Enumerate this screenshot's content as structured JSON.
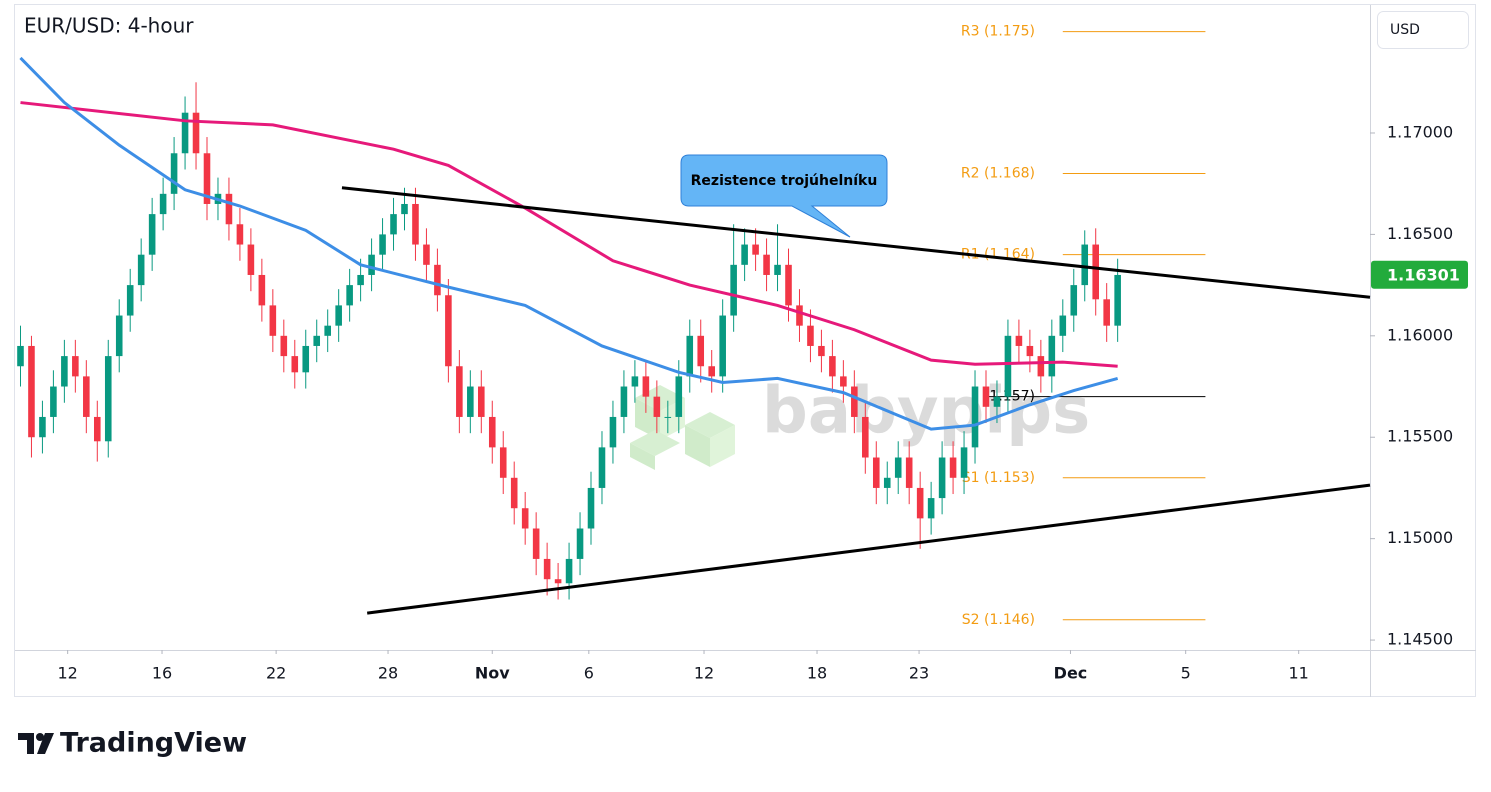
{
  "chart_data": {
    "type": "candlestick",
    "title": "EUR/USD: 4-hour",
    "currency": "USD",
    "watermark": "babypips",
    "brand": "TradingView",
    "up_color": "#089981",
    "down_color": "#f23645",
    "xlim": [
      -0.5,
      123
    ],
    "xticks": [
      {
        "value": 4.3,
        "label": "12"
      },
      {
        "value": 12.9,
        "label": "16"
      },
      {
        "value": 23.3,
        "label": "22"
      },
      {
        "value": 33.5,
        "label": "28"
      },
      {
        "value": 43,
        "label": "Nov"
      },
      {
        "value": 51.8,
        "label": "6"
      },
      {
        "value": 62.3,
        "label": "12"
      },
      {
        "value": 72.6,
        "label": "18"
      },
      {
        "value": 81.9,
        "label": "23"
      },
      {
        "value": 95.7,
        "label": "Dec"
      },
      {
        "value": 106.2,
        "label": "5"
      },
      {
        "value": 116.5,
        "label": "11"
      }
    ],
    "ylim": [
      1.14451,
      1.17631
    ],
    "yticks": [
      {
        "value": 1.145,
        "label": "1.14500"
      },
      {
        "value": 1.15,
        "label": "1.15000"
      },
      {
        "value": 1.155,
        "label": "1.15500"
      },
      {
        "value": 1.16,
        "label": "1.16000"
      },
      {
        "value": 1.165,
        "label": "1.16500"
      },
      {
        "value": 1.17,
        "label": "1.17000"
      }
    ],
    "x": [
      0,
      1,
      2,
      3,
      4,
      5,
      6,
      7,
      8,
      9,
      10,
      11,
      12,
      13,
      14,
      15,
      16,
      17,
      18,
      19,
      20,
      21,
      22,
      23,
      24,
      25,
      26,
      27,
      28,
      29,
      30,
      31,
      32,
      33,
      34,
      35,
      36,
      37,
      38,
      39,
      40,
      41,
      42,
      43,
      44,
      45,
      46,
      47,
      48,
      49,
      50,
      51,
      52,
      53,
      54,
      55,
      56,
      57,
      58,
      59,
      60,
      61,
      62,
      63,
      64,
      65,
      66,
      67,
      68,
      69,
      70,
      71,
      72,
      73,
      74,
      75,
      76,
      77,
      78,
      79,
      80,
      81,
      82,
      83,
      84,
      85,
      86,
      87,
      88,
      89,
      90,
      91,
      92,
      93,
      94,
      95,
      96,
      97,
      98,
      99,
      100
    ],
    "ohlc": [
      [
        1.1585,
        1.1605,
        1.1575,
        1.1595
      ],
      [
        1.1595,
        1.16,
        1.154,
        1.155
      ],
      [
        1.155,
        1.1568,
        1.1542,
        1.156
      ],
      [
        1.156,
        1.1583,
        1.1552,
        1.1575
      ],
      [
        1.1575,
        1.1598,
        1.1567,
        1.159
      ],
      [
        1.159,
        1.1598,
        1.1572,
        1.158
      ],
      [
        1.158,
        1.1588,
        1.1552,
        1.156
      ],
      [
        1.156,
        1.1568,
        1.1538,
        1.1548
      ],
      [
        1.1548,
        1.1598,
        1.154,
        1.159
      ],
      [
        1.159,
        1.1618,
        1.1582,
        1.161
      ],
      [
        1.161,
        1.1633,
        1.1602,
        1.1625
      ],
      [
        1.1625,
        1.1648,
        1.1617,
        1.164
      ],
      [
        1.164,
        1.1668,
        1.1632,
        1.166
      ],
      [
        1.166,
        1.1678,
        1.1652,
        1.167
      ],
      [
        1.167,
        1.1698,
        1.1662,
        1.169
      ],
      [
        1.169,
        1.1718,
        1.1682,
        1.171
      ],
      [
        1.171,
        1.1725,
        1.1682,
        1.169
      ],
      [
        1.169,
        1.1698,
        1.1657,
        1.1665
      ],
      [
        1.1665,
        1.1678,
        1.1657,
        1.167
      ],
      [
        1.167,
        1.1678,
        1.1647,
        1.1655
      ],
      [
        1.1655,
        1.1663,
        1.1637,
        1.1645
      ],
      [
        1.1645,
        1.1653,
        1.1622,
        1.163
      ],
      [
        1.163,
        1.1638,
        1.1607,
        1.1615
      ],
      [
        1.1615,
        1.1623,
        1.1592,
        1.16
      ],
      [
        1.16,
        1.1608,
        1.1582,
        1.159
      ],
      [
        1.159,
        1.1598,
        1.1574,
        1.1582
      ],
      [
        1.1582,
        1.1603,
        1.1574,
        1.1595
      ],
      [
        1.1595,
        1.1608,
        1.1587,
        1.16
      ],
      [
        1.16,
        1.1613,
        1.1592,
        1.1605
      ],
      [
        1.1605,
        1.1623,
        1.1597,
        1.1615
      ],
      [
        1.1615,
        1.1633,
        1.1607,
        1.1625
      ],
      [
        1.1625,
        1.1638,
        1.1617,
        1.163
      ],
      [
        1.163,
        1.1648,
        1.1622,
        1.164
      ],
      [
        1.164,
        1.1658,
        1.1632,
        1.165
      ],
      [
        1.165,
        1.1668,
        1.1642,
        1.166
      ],
      [
        1.166,
        1.1673,
        1.1652,
        1.1665
      ],
      [
        1.1665,
        1.1673,
        1.1637,
        1.1645
      ],
      [
        1.1645,
        1.1653,
        1.1627,
        1.1635
      ],
      [
        1.1635,
        1.1643,
        1.1612,
        1.162
      ],
      [
        1.162,
        1.1628,
        1.1577,
        1.1585
      ],
      [
        1.1585,
        1.1593,
        1.1552,
        1.156
      ],
      [
        1.156,
        1.1583,
        1.1552,
        1.1575
      ],
      [
        1.1575,
        1.1583,
        1.1552,
        1.156
      ],
      [
        1.156,
        1.1568,
        1.1537,
        1.1545
      ],
      [
        1.1545,
        1.1553,
        1.1522,
        1.153
      ],
      [
        1.153,
        1.1538,
        1.1507,
        1.1515
      ],
      [
        1.1515,
        1.1523,
        1.1497,
        1.1505
      ],
      [
        1.1505,
        1.1513,
        1.1482,
        1.149
      ],
      [
        1.149,
        1.1498,
        1.1472,
        1.148
      ],
      [
        1.148,
        1.1488,
        1.147,
        1.1478
      ],
      [
        1.1478,
        1.1498,
        1.147,
        1.149
      ],
      [
        1.149,
        1.1513,
        1.1482,
        1.1505
      ],
      [
        1.1505,
        1.1533,
        1.1497,
        1.1525
      ],
      [
        1.1525,
        1.1553,
        1.1517,
        1.1545
      ],
      [
        1.1545,
        1.1568,
        1.1537,
        1.156
      ],
      [
        1.156,
        1.1583,
        1.1552,
        1.1575
      ],
      [
        1.1575,
        1.1588,
        1.1567,
        1.158
      ],
      [
        1.158,
        1.1588,
        1.1562,
        1.157
      ],
      [
        1.157,
        1.1578,
        1.1552,
        1.156
      ],
      [
        1.156,
        1.1568,
        1.1552,
        1.156
      ],
      [
        1.156,
        1.1588,
        1.1552,
        1.158
      ],
      [
        1.158,
        1.1608,
        1.1572,
        1.16
      ],
      [
        1.16,
        1.1608,
        1.1577,
        1.1585
      ],
      [
        1.1585,
        1.1593,
        1.1572,
        1.158
      ],
      [
        1.158,
        1.1618,
        1.1572,
        1.161
      ],
      [
        1.161,
        1.1655,
        1.1602,
        1.1635
      ],
      [
        1.1635,
        1.1653,
        1.1627,
        1.1645
      ],
      [
        1.1645,
        1.1653,
        1.1632,
        1.164
      ],
      [
        1.164,
        1.1648,
        1.1622,
        1.163
      ],
      [
        1.163,
        1.1655,
        1.1622,
        1.1635
      ],
      [
        1.1635,
        1.1643,
        1.1607,
        1.1615
      ],
      [
        1.1615,
        1.1623,
        1.1597,
        1.1605
      ],
      [
        1.1605,
        1.1613,
        1.1587,
        1.1595
      ],
      [
        1.1595,
        1.1603,
        1.1582,
        1.159
      ],
      [
        1.159,
        1.1598,
        1.1572,
        1.158
      ],
      [
        1.158,
        1.1588,
        1.1567,
        1.1575
      ],
      [
        1.1575,
        1.1583,
        1.1552,
        1.156
      ],
      [
        1.156,
        1.1568,
        1.1532,
        1.154
      ],
      [
        1.154,
        1.1548,
        1.1517,
        1.1525
      ],
      [
        1.1525,
        1.1538,
        1.1517,
        1.153
      ],
      [
        1.153,
        1.1548,
        1.1522,
        1.154
      ],
      [
        1.154,
        1.1548,
        1.1517,
        1.1525
      ],
      [
        1.1525,
        1.1533,
        1.1495,
        1.151
      ],
      [
        1.151,
        1.1528,
        1.1502,
        1.152
      ],
      [
        1.152,
        1.1548,
        1.1512,
        1.154
      ],
      [
        1.154,
        1.1548,
        1.1522,
        1.153
      ],
      [
        1.153,
        1.1553,
        1.1522,
        1.1545
      ],
      [
        1.1545,
        1.1583,
        1.1537,
        1.1575
      ],
      [
        1.1575,
        1.1583,
        1.1557,
        1.1565
      ],
      [
        1.1565,
        1.1578,
        1.1557,
        1.157
      ],
      [
        1.157,
        1.1608,
        1.1562,
        1.16
      ],
      [
        1.16,
        1.1608,
        1.1587,
        1.1595
      ],
      [
        1.1595,
        1.1603,
        1.1582,
        1.159
      ],
      [
        1.159,
        1.1598,
        1.1572,
        1.158
      ],
      [
        1.158,
        1.1608,
        1.1572,
        1.16
      ],
      [
        1.16,
        1.1618,
        1.1592,
        1.161
      ],
      [
        1.161,
        1.1633,
        1.1602,
        1.1625
      ],
      [
        1.1625,
        1.1652,
        1.1617,
        1.1645
      ],
      [
        1.1645,
        1.1653,
        1.161,
        1.1618
      ],
      [
        1.1618,
        1.1626,
        1.1597,
        1.1605
      ],
      [
        1.1605,
        1.1638,
        1.1597,
        1.163
      ]
    ],
    "moving_averages": [
      {
        "color": "#e6197a",
        "x": [
          0,
          15,
          23,
          34,
          39,
          46,
          54,
          61,
          69,
          76,
          83,
          87,
          95,
          100
        ],
        "values": [
          1.1715,
          1.1706,
          1.1704,
          1.1692,
          1.1684,
          1.1663,
          1.1637,
          1.1625,
          1.1615,
          1.1603,
          1.1588,
          1.1586,
          1.1587,
          1.1585
        ]
      },
      {
        "color": "#3d8ee6",
        "x": [
          0,
          4,
          9,
          15,
          20,
          26,
          31,
          39,
          46,
          53,
          60,
          64,
          69,
          75,
          83,
          87,
          92,
          96,
          100
        ],
        "values": [
          1.1737,
          1.1715,
          1.1694,
          1.1672,
          1.1664,
          1.1652,
          1.1635,
          1.1624,
          1.1615,
          1.1595,
          1.1582,
          1.1577,
          1.1579,
          1.1572,
          1.1554,
          1.1556,
          1.1566,
          1.1573,
          1.1579
        ]
      }
    ],
    "trendlines": [
      {
        "color": "#000000",
        "x": [
          29.3,
          123
        ],
        "values": [
          1.1673,
          1.1619
        ]
      },
      {
        "color": "#000000",
        "x": [
          31.6,
          123
        ],
        "values": [
          1.14633,
          1.15264
        ]
      }
    ],
    "pivot_color": "#f39c12",
    "pivots": [
      {
        "label": "R3 (1.175)",
        "value": 1.175,
        "x": [
          95,
          108
        ],
        "color": "#f39c12"
      },
      {
        "label": "R2 (1.168)",
        "value": 1.168,
        "x": [
          95,
          108
        ],
        "color": "#f39c12"
      },
      {
        "label": "R1 (1.164)",
        "value": 1.164,
        "x": [
          95,
          108
        ],
        "color": "#f39c12"
      },
      {
        "label": "(1.157)",
        "value": 1.157,
        "x": [
          88,
          108
        ],
        "color": "#000000"
      },
      {
        "label": "S1 (1.153)",
        "value": 1.153,
        "x": [
          95,
          108
        ],
        "color": "#f39c12"
      },
      {
        "label": "S2 (1.146)",
        "value": 1.146,
        "x": [
          95,
          108
        ],
        "color": "#f39c12"
      }
    ],
    "last_price": {
      "value": 1.16301,
      "color": "#22ab3c"
    },
    "annotation": "Rezistence trojúhelníku"
  }
}
